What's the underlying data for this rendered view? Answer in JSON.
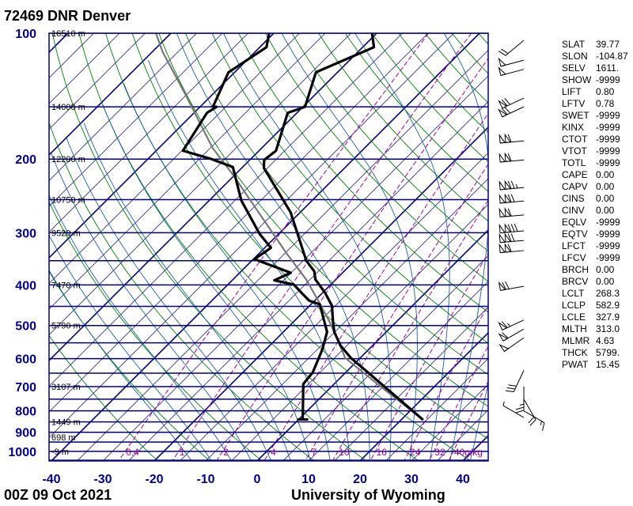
{
  "header": {
    "title": "72469 DNR Denver"
  },
  "footer": {
    "time": "00Z 09 Oct 2021",
    "credit": "University of Wyoming"
  },
  "colors": {
    "isobar": "#000080",
    "isotherm": "#000080",
    "dry_adiabat": "#008000",
    "moist_adiabat": "#1f5fa0",
    "mixing_ratio": "#a000a0",
    "temperature": "#000000",
    "dewpoint": "#000000",
    "parcel": "#777777",
    "axis_labels": "#00008b"
  },
  "stats": [
    {
      "key": "SLAT",
      "value": "39.77"
    },
    {
      "key": "SLON",
      "value": "-104.87"
    },
    {
      "key": "SELV",
      "value": "1611."
    },
    {
      "key": "SHOW",
      "value": "-9999"
    },
    {
      "key": "LIFT",
      "value": "0.80"
    },
    {
      "key": "LFTV",
      "value": "0.78"
    },
    {
      "key": "SWET",
      "value": "-9999"
    },
    {
      "key": "KINX",
      "value": "-9999"
    },
    {
      "key": "CTOT",
      "value": "-9999"
    },
    {
      "key": "VTOT",
      "value": "-9999"
    },
    {
      "key": "TOTL",
      "value": "-9999"
    },
    {
      "key": "CAPE",
      "value": "0.00"
    },
    {
      "key": "CAPV",
      "value": "0.00"
    },
    {
      "key": "CINS",
      "value": "0.00"
    },
    {
      "key": "CINV",
      "value": "0.00"
    },
    {
      "key": "EQLV",
      "value": "-9999"
    },
    {
      "key": "EQTV",
      "value": "-9999"
    },
    {
      "key": "LFCT",
      "value": "-9999"
    },
    {
      "key": "LFCV",
      "value": "-9999"
    },
    {
      "key": "BRCH",
      "value": "0.00"
    },
    {
      "key": "BRCV",
      "value": "0.00"
    },
    {
      "key": "LCLT",
      "value": "268.3"
    },
    {
      "key": "LCLP",
      "value": "582.9"
    },
    {
      "key": "LCLE",
      "value": "327.9"
    },
    {
      "key": "MLTH",
      "value": "313.0"
    },
    {
      "key": "MLMR",
      "value": "4.63"
    },
    {
      "key": "THCK",
      "value": "5799."
    },
    {
      "key": "PWAT",
      "value": "15.45"
    }
  ],
  "chart_data": {
    "type": "line",
    "subtype": "skew-t log-p",
    "x_axis": {
      "unit": "°C",
      "range": [
        -40,
        45
      ],
      "ticks": [
        -40,
        -30,
        -20,
        -10,
        0,
        10,
        20,
        30,
        40
      ],
      "tick_labels": [
        "-40",
        "-30",
        "-20",
        "-10",
        "0",
        "10",
        "20",
        "30",
        "40"
      ],
      "isotherm_skew_deg": 45
    },
    "y_axis": {
      "unit": "hPa",
      "scale": "log",
      "range": [
        1050,
        100
      ],
      "ticks": [
        100,
        200,
        300,
        400,
        500,
        600,
        700,
        800,
        900,
        1000
      ],
      "tick_labels": [
        "100",
        "200",
        "300",
        "400",
        "500",
        "600",
        "700",
        "800",
        "900",
        "1000"
      ],
      "isobar_interval": 50
    },
    "height_labels": [
      {
        "p": 100,
        "label": "16510 m"
      },
      {
        "p": 150,
        "label": "14000 m"
      },
      {
        "p": 200,
        "label": "12200 m"
      },
      {
        "p": 250,
        "label": "10750 m"
      },
      {
        "p": 300,
        "label": "9520 m"
      },
      {
        "p": 400,
        "label": "7470 m"
      },
      {
        "p": 500,
        "label": "5790 m"
      },
      {
        "p": 700,
        "label": "3107 m"
      },
      {
        "p": 850,
        "label": "1449 m"
      },
      {
        "p": 925,
        "label": "698 m"
      },
      {
        "p": 1000,
        "label": "-9 m"
      }
    ],
    "mixing_ratio_lines": [
      {
        "w": 0.4,
        "label": "0.4"
      },
      {
        "w": 1,
        "label": "1"
      },
      {
        "w": 2,
        "label": "2"
      },
      {
        "w": 4,
        "label": "4"
      },
      {
        "w": 7,
        "label": "7"
      },
      {
        "w": 10,
        "label": "10"
      },
      {
        "w": 16,
        "label": "16"
      },
      {
        "w": 24,
        "label": "24"
      },
      {
        "w": 32,
        "label": "32"
      },
      {
        "w": 40,
        "label": "40g/kg"
      }
    ],
    "dry_adiabats_theta_K": [
      250,
      260,
      270,
      280,
      290,
      300,
      310,
      320,
      330,
      340,
      350,
      360,
      370,
      380,
      390,
      400,
      410,
      420,
      430,
      440,
      450,
      460,
      470,
      480
    ],
    "moist_adiabats_T1000_C": [
      -16,
      -12,
      -8,
      -4,
      0,
      4,
      8,
      12,
      16,
      20,
      24,
      28,
      32,
      36,
      40
    ],
    "series": [
      {
        "name": "temperature",
        "points": [
          [
            100,
            -60.9
          ],
          [
            108,
            -57.8
          ],
          [
            124,
            -64.2
          ],
          [
            150,
            -59.6
          ],
          [
            155,
            -61.8
          ],
          [
            191,
            -56.7
          ],
          [
            201,
            -57.2
          ],
          [
            210,
            -55.7
          ],
          [
            268,
            -41.9
          ],
          [
            350,
            -29.4
          ],
          [
            371,
            -25.8
          ],
          [
            388,
            -24.0
          ],
          [
            417,
            -19.6
          ],
          [
            448,
            -15.7
          ],
          [
            489,
            -12.4
          ],
          [
            518,
            -10.1
          ],
          [
            558,
            -6.3
          ],
          [
            598,
            -1.8
          ],
          [
            643,
            3.8
          ],
          [
            841,
            24.3
          ]
        ]
      },
      {
        "name": "dewpoint",
        "points": [
          [
            100,
            -80.9
          ],
          [
            108,
            -78.7
          ],
          [
            124,
            -81.2
          ],
          [
            150,
            -77.5
          ],
          [
            150,
            -76.8
          ],
          [
            155,
            -77.5
          ],
          [
            191,
            -74.8
          ],
          [
            200,
            -67.6
          ],
          [
            209,
            -61.9
          ],
          [
            251,
            -53.8
          ],
          [
            302,
            -43.7
          ],
          [
            326,
            -38.8
          ],
          [
            347,
            -39.8
          ],
          [
            374,
            -30.1
          ],
          [
            390,
            -31.8
          ],
          [
            399,
            -27.2
          ],
          [
            417,
            -24.2
          ],
          [
            436,
            -21.1
          ],
          [
            445,
            -18.3
          ],
          [
            518,
            -11.5
          ],
          [
            571,
            -9.0
          ],
          [
            648,
            -6.4
          ],
          [
            690,
            -6.0
          ],
          [
            839,
            0.8
          ]
        ]
      },
      {
        "name": "parcel",
        "points": [
          [
            100,
            -102.9
          ],
          [
            111,
            -97.9
          ],
          [
            140,
            -85.3
          ],
          [
            188,
            -69.6
          ],
          [
            218,
            -60.4
          ],
          [
            336,
            -34.7
          ],
          [
            388,
            -25.8
          ],
          [
            441,
            -18.7
          ],
          [
            489,
            -13.1
          ],
          [
            540,
            -8.0
          ],
          [
            598,
            -2.9
          ],
          [
            703,
            9.9
          ],
          [
            841,
            24.3
          ]
        ]
      }
    ],
    "wind_barbs_kt": [
      {
        "p": 104,
        "dir": 230,
        "spd": 20
      },
      {
        "p": 116,
        "dir": 255,
        "spd": 50
      },
      {
        "p": 122,
        "dir": 255,
        "spd": 50
      },
      {
        "p": 143,
        "dir": 245,
        "spd": 70
      },
      {
        "p": 150,
        "dir": 245,
        "spd": 70
      },
      {
        "p": 181,
        "dir": 265,
        "spd": 110
      },
      {
        "p": 201,
        "dir": 265,
        "spd": 110
      },
      {
        "p": 234,
        "dir": 265,
        "spd": 125
      },
      {
        "p": 252,
        "dir": 265,
        "spd": 120
      },
      {
        "p": 272,
        "dir": 265,
        "spd": 110
      },
      {
        "p": 297,
        "dir": 265,
        "spd": 130
      },
      {
        "p": 313,
        "dir": 265,
        "spd": 120
      },
      {
        "p": 331,
        "dir": 265,
        "spd": 110
      },
      {
        "p": 403,
        "dir": 260,
        "spd": 70
      },
      {
        "p": 485,
        "dir": 245,
        "spd": 65
      },
      {
        "p": 510,
        "dir": 240,
        "spd": 60
      },
      {
        "p": 535,
        "dir": 235,
        "spd": 50
      },
      {
        "p": 640,
        "dir": 205,
        "spd": 30
      },
      {
        "p": 700,
        "dir": 180,
        "spd": 25
      },
      {
        "p": 750,
        "dir": 150,
        "spd": 20
      },
      {
        "p": 800,
        "dir": 120,
        "spd": 15
      },
      {
        "p": 830,
        "dir": 300,
        "spd": 5
      }
    ]
  }
}
